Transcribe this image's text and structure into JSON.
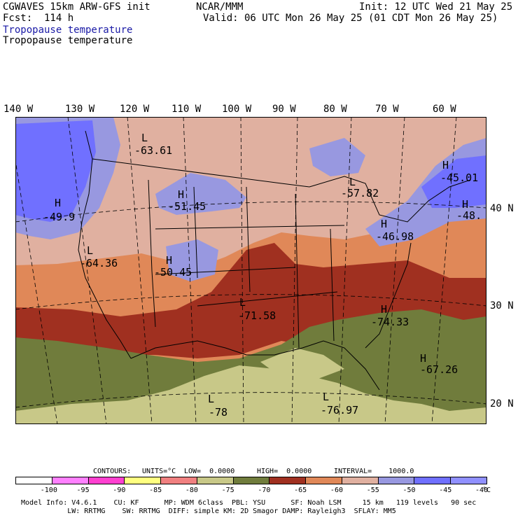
{
  "header": {
    "model": "CGWAVES 15km ARW-GFS init",
    "fcst": "Fcst:  114 h",
    "org": "NCAR/MMM",
    "init": "Init: 12 UTC Wed 21 May 25",
    "valid": "Valid: 06 UTC Mon 26 May 25 (01 CDT Mon 26 May 25)",
    "field_title_1": "Tropopause temperature",
    "field_title_2": "Tropopause temperature"
  },
  "longitudes": [
    "140 W",
    "130 W",
    "120 W",
    "110 W",
    "100 W",
    "90 W",
    "80 W",
    "70 W",
    "60 W"
  ],
  "latitudes": [
    "40 N",
    "30 N",
    "20 N"
  ],
  "extrema": [
    {
      "type": "L",
      "value": "-63.61"
    },
    {
      "type": "H",
      "value": "-51.45"
    },
    {
      "type": "H",
      "value": "-49.9"
    },
    {
      "type": "L",
      "value": "-64.36"
    },
    {
      "type": "H",
      "value": "-50.45"
    },
    {
      "type": "L",
      "value": "-57.82"
    },
    {
      "type": "H",
      "value": "-45.01"
    },
    {
      "type": "H",
      "value": "-48."
    },
    {
      "type": "H",
      "value": "-46.98"
    },
    {
      "type": "L",
      "value": "-71.58"
    },
    {
      "type": "H",
      "value": "-74.33"
    },
    {
      "type": "H",
      "value": "-67.26"
    },
    {
      "type": "L",
      "value": "-78"
    },
    {
      "type": "L",
      "value": "-76.97"
    }
  ],
  "contour_info": {
    "contours_label": "CONTOURS:",
    "units": "UNITS=°C",
    "low": "LOW=  0.0000",
    "high": "HIGH=  0.0000",
    "interval": "INTERVAL=    1000.0"
  },
  "legend": {
    "colors": [
      "#ffffff",
      "#ff80ff",
      "#ff40d0",
      "#ffff80",
      "#f08080",
      "#c8c888",
      "#707c3c",
      "#a03020",
      "#e08858",
      "#e0b0a0",
      "#9898e0",
      "#7070ff",
      "#9090ff"
    ],
    "labels": [
      "-100",
      "-95",
      "-90",
      "-85",
      "-80",
      "-75",
      "-70",
      "-65",
      "-60",
      "-55",
      "-50",
      "-45",
      "-40"
    ],
    "unit": "°C"
  },
  "footer": {
    "line1": "Model Info: V4.6.1    CU: KF      MP: WDM 6class  PBL: YSU      SF: Noah LSM     15 km   119 levels   90 sec",
    "line2": "           LW: RRTMG    SW: RRTMG  DIFF: simple KM: 2D Smagor DAMP: Rayleigh3  SFLAY: MM5"
  }
}
